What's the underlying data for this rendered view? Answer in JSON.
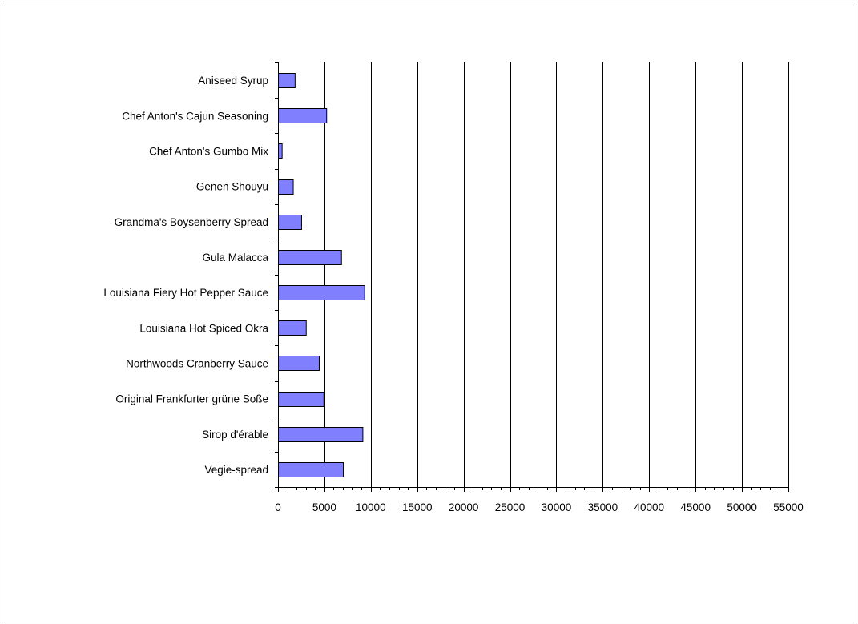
{
  "chart_data": {
    "type": "bar",
    "orientation": "horizontal",
    "categories": [
      "Aniseed Syrup",
      "Chef Anton's Cajun Seasoning",
      "Chef Anton's Gumbo Mix",
      "Genen Shouyu",
      "Grandma's Boysenberry Spread",
      "Gula Malacca",
      "Louisiana Fiery Hot Pepper Sauce",
      "Louisiana Hot Spiced Okra",
      "Northwoods Cranberry Sauce",
      "Original Frankfurter grüne Soße",
      "Sirop d'érable",
      "Vegie-spread"
    ],
    "values": [
      1800,
      5200,
      400,
      1600,
      2500,
      6800,
      9300,
      3000,
      4400,
      4900,
      9100,
      7000
    ],
    "xlim": [
      0,
      55000
    ],
    "x_ticks": [
      "0",
      "5000",
      "10000",
      "15000",
      "20000",
      "25000",
      "30000",
      "35000",
      "40000",
      "45000",
      "50000",
      "55000"
    ],
    "x_major_step": 5000,
    "x_minor_step": 1000,
    "gridlines": "vertical-major",
    "legend": "none",
    "colors": {
      "bar_fill": "#8080ff",
      "bar_stroke": "#000000",
      "grid": "#000000",
      "axis": "#000000"
    }
  }
}
